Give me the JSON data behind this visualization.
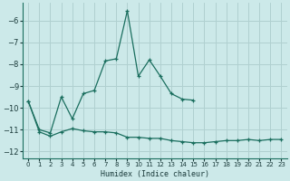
{
  "xlabel": "Humidex (Indice chaleur)",
  "background_color": "#cce9e9",
  "grid_color": "#b0d0d0",
  "line_color": "#1a6e5e",
  "xlim": [
    -0.5,
    23.5
  ],
  "ylim": [
    -12.3,
    -5.2
  ],
  "yticks": [
    -12,
    -11,
    -10,
    -9,
    -8,
    -7,
    -6
  ],
  "xticks": [
    0,
    1,
    2,
    3,
    4,
    5,
    6,
    7,
    8,
    9,
    10,
    11,
    12,
    13,
    14,
    15,
    16,
    17,
    18,
    19,
    20,
    21,
    22,
    23
  ],
  "series1_x": [
    0,
    1,
    2,
    3,
    4,
    5,
    6,
    7,
    8,
    9,
    10,
    11,
    12,
    13,
    14,
    15
  ],
  "series1_y": [
    -9.7,
    -11.0,
    -11.15,
    -9.5,
    -10.5,
    -9.35,
    -9.2,
    -7.85,
    -7.75,
    -5.55,
    -8.55,
    -7.8,
    -8.55,
    -9.35,
    -9.6,
    -9.65
  ],
  "series2_x": [
    0,
    1,
    2,
    3,
    4,
    5,
    6,
    7,
    8,
    9,
    10,
    11,
    12,
    13,
    14,
    15,
    16,
    17,
    18,
    19,
    20,
    21,
    22,
    23
  ],
  "series2_y": [
    -9.7,
    -11.1,
    -11.3,
    -11.1,
    -10.95,
    -11.05,
    -11.1,
    -11.1,
    -11.15,
    -11.35,
    -11.35,
    -11.4,
    -11.4,
    -11.5,
    -11.55,
    -11.6,
    -11.6,
    -11.55,
    -11.5,
    -11.5,
    -11.45,
    -11.5,
    -11.45,
    -11.45
  ]
}
